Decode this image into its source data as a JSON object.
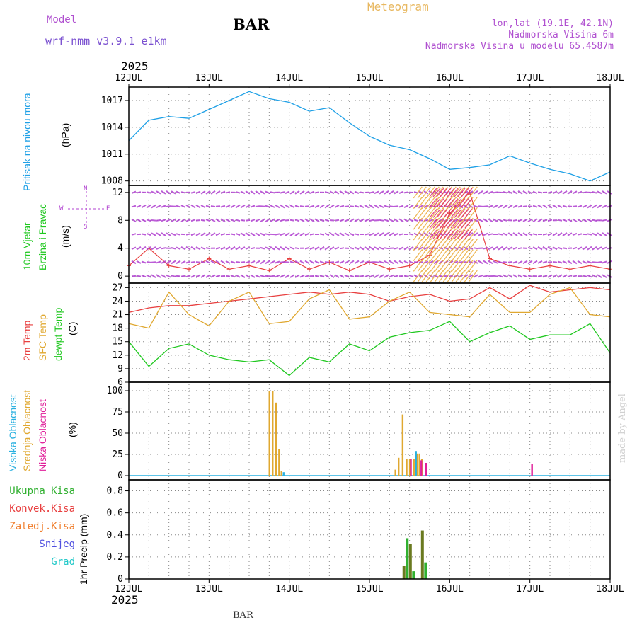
{
  "header": {
    "model_label": "Model",
    "model_name": "wrf-nmm_v3.9.1 e1km",
    "station": "BAR",
    "product": "Meteogram",
    "lonlat": "lon,lat (19.1E, 42.1N)",
    "elevation": "Nadmorska Visina 6m",
    "model_elevation": "Nadmorska Visina u modelu 65.4587m",
    "year_top": "2025",
    "year_bottom": "2025",
    "footer_station": "BAR",
    "credit": "made by Angel"
  },
  "colors": {
    "pressure": "#1ea0e6",
    "t2m": "#e84040",
    "sfc_temp": "#e0a830",
    "dewpoint": "#20c820",
    "high_cloud": "#28b0e0",
    "mid_cloud": "#e0a830",
    "low_cloud": "#e0209a",
    "total_precip": "#30b030",
    "conv_precip": "#e84040",
    "frz_precip": "#f08030",
    "snow": "#5050e0",
    "hail": "#20c8c8",
    "wind_label": "#20c820",
    "wind_dir": "#b040d0",
    "precip_bar_dark": "#6a7a20"
  },
  "panels": {
    "pressure": {
      "label": "Pritisak na nivou mora",
      "unit": "(hPa)",
      "yticks": [
        "1008",
        "1011",
        "1014",
        "1017"
      ]
    },
    "wind": {
      "label1": "10m Vjetar",
      "label2": "Brzina i Pravac",
      "unit": "(m/s)",
      "dir_top": "N",
      "dir_bottom": "S",
      "dir_west": "W",
      "dir_east": "E",
      "yticks": [
        "0",
        "4",
        "8",
        "12"
      ]
    },
    "temperature": {
      "label_t2m": "2m Temp",
      "label_sfc": "SFC Temp",
      "label_dew": "dewpt Temp",
      "unit": "(C)",
      "yticks": [
        "6",
        "9",
        "12",
        "15",
        "18",
        "21",
        "24",
        "27"
      ]
    },
    "cloud": {
      "label_high": "Visoka Oblacnost",
      "label_mid": "Srednja Oblacnost",
      "label_low": "Niska Oblacnost",
      "unit": "(%)",
      "yticks": [
        "0",
        "25",
        "50",
        "75",
        "100"
      ]
    },
    "precip": {
      "legend": [
        "Ukupna Kisa",
        "Konvek.Kisa",
        "Zaledj.Kisa",
        "Snijeg",
        "Grad"
      ],
      "unit": "1hr Precip (mm)",
      "yticks": [
        "0",
        "0.2",
        "0.4",
        "0.6",
        "0.8"
      ]
    }
  },
  "chart_data": [
    {
      "type": "line",
      "x_categories": [
        "12JUL",
        "13JUL",
        "14JUL",
        "15JUL",
        "16JUL",
        "17JUL",
        "18JUL"
      ],
      "x_days": [
        0,
        0.25,
        0.5,
        0.75,
        1.0,
        1.25,
        1.5,
        1.75,
        2.0,
        2.25,
        2.5,
        2.75,
        3.0,
        3.25,
        3.5,
        3.75,
        4.0,
        4.25,
        4.5,
        4.75,
        5.0,
        5.25,
        5.5,
        5.75,
        6.0
      ],
      "series": [
        {
          "name": "Pritisak na nivou mora",
          "values": [
            1012.5,
            1014.8,
            1015.2,
            1015.0,
            1016.0,
            1017.0,
            1018.0,
            1017.2,
            1016.8,
            1015.8,
            1016.2,
            1014.5,
            1013.0,
            1012.0,
            1011.5,
            1010.5,
            1009.3,
            1009.5,
            1009.8,
            1010.8,
            1010.0,
            1009.3,
            1008.8,
            1008.0,
            1009.0
          ]
        }
      ],
      "ylabel": "(hPa)",
      "ylim": [
        1007.5,
        1018.5
      ]
    },
    {
      "type": "line",
      "x_days": [
        0,
        0.25,
        0.5,
        0.75,
        1.0,
        1.25,
        1.5,
        1.75,
        2.0,
        2.25,
        2.5,
        2.75,
        3.0,
        3.25,
        3.5,
        3.75,
        4.0,
        4.25,
        4.5,
        4.75,
        5.0,
        5.25,
        5.5,
        5.75,
        6.0
      ],
      "series": [
        {
          "name": "10m Vjetar",
          "values": [
            1.5,
            4.0,
            1.5,
            1.0,
            2.5,
            1.0,
            1.5,
            0.8,
            2.5,
            1.0,
            2.0,
            0.8,
            2.0,
            1.0,
            1.5,
            3.0,
            9.0,
            12.0,
            2.5,
            1.5,
            1.0,
            1.5,
            1.0,
            1.5,
            1.0
          ]
        }
      ],
      "ylabel": "(m/s)",
      "ylim": [
        -1,
        13
      ]
    },
    {
      "type": "line",
      "x_days": [
        0,
        0.25,
        0.5,
        0.75,
        1.0,
        1.25,
        1.5,
        1.75,
        2.0,
        2.25,
        2.5,
        2.75,
        3.0,
        3.25,
        3.5,
        3.75,
        4.0,
        4.25,
        4.5,
        4.75,
        5.0,
        5.25,
        5.5,
        5.75,
        6.0
      ],
      "series": [
        {
          "name": "2m Temp",
          "values": [
            21.5,
            22.5,
            23.0,
            23.0,
            23.5,
            24.0,
            24.5,
            25.0,
            25.5,
            26.0,
            25.5,
            26.0,
            25.5,
            24.0,
            25.0,
            25.5,
            24.0,
            24.5,
            27.0,
            24.5,
            27.5,
            26.0,
            26.5,
            27.0,
            26.5
          ]
        },
        {
          "name": "SFC Temp",
          "values": [
            19.0,
            18.0,
            26.0,
            21.0,
            18.5,
            24.0,
            26.0,
            19.0,
            19.5,
            24.5,
            26.5,
            20.0,
            20.5,
            24.0,
            26.0,
            21.5,
            21.0,
            20.5,
            25.5,
            21.5,
            21.5,
            25.5,
            27.0,
            21.0,
            20.5
          ]
        },
        {
          "name": "dewpt Temp",
          "values": [
            15.0,
            9.5,
            13.5,
            14.5,
            12.0,
            11.0,
            10.5,
            11.0,
            7.5,
            11.5,
            10.5,
            14.5,
            13.0,
            16.0,
            17.0,
            17.5,
            19.5,
            15.0,
            17.0,
            18.5,
            15.5,
            16.5,
            16.5,
            19.0,
            12.5
          ]
        }
      ],
      "ylabel": "(C)",
      "ylim": [
        6,
        28
      ]
    },
    {
      "type": "bar",
      "x_days": [
        1.78,
        1.82,
        1.86,
        1.9,
        1.93,
        3.35,
        3.39,
        3.44,
        3.49,
        3.53,
        3.58,
        3.62,
        3.65,
        3.68,
        5.0
      ],
      "series": [
        {
          "name": "Srednja Oblacnost",
          "values": [
            100,
            100,
            86,
            31,
            5,
            7,
            21,
            72,
            20,
            20,
            20,
            26,
            26,
            20,
            0
          ]
        },
        {
          "name": "Visoka Oblacnost",
          "values": [
            0,
            0,
            0,
            0,
            4,
            0,
            0,
            0,
            0,
            0,
            29,
            0,
            0,
            0,
            0
          ]
        },
        {
          "name": "Niska Oblacnost",
          "values": [
            0,
            0,
            0,
            0,
            0,
            0,
            0,
            0,
            20,
            0,
            0,
            18,
            0,
            15,
            14
          ]
        }
      ],
      "ylabel": "(%)",
      "ylim": [
        -5,
        110
      ]
    },
    {
      "type": "bar",
      "x_days": [
        3.43,
        3.47,
        3.51,
        3.55,
        3.66,
        3.7
      ],
      "series": [
        {
          "name": "Ukupna Kisa",
          "values": [
            0.12,
            0.37,
            0.32,
            0.07,
            0.44,
            0.15
          ]
        }
      ],
      "ylabel": "1hr Precip (mm)",
      "ylim": [
        0,
        0.9
      ]
    }
  ]
}
